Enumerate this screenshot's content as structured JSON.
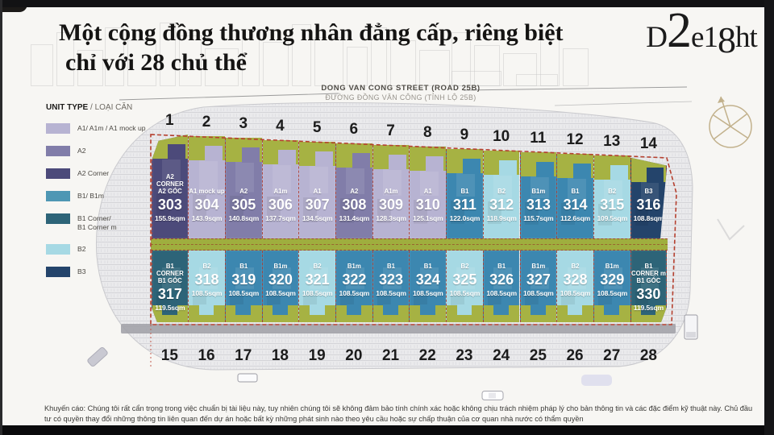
{
  "header": {
    "title_line1": "Một cộng đồng thương nhân đẳng cấp, riêng biệt",
    "title_line2": "chỉ với 28 chủ thể",
    "logo": "D2e18ht"
  },
  "street": {
    "name_en": "DONG VAN CONG STREET (ROAD 25B)",
    "name_vi": "ĐƯỜNG ĐỒNG VĂN CÔNG (TỈNH LỘ 25B)"
  },
  "legend": {
    "title_en": "UNIT TYPE",
    "title_vi": " / LOẠI CĂN",
    "items": [
      {
        "label": [
          "A1/ A1m / A1 mock up"
        ],
        "color": "#b7b3d2"
      },
      {
        "label": [
          "A2"
        ],
        "color": "#817da9"
      },
      {
        "label": [
          "A2 Corner"
        ],
        "color": "#4c4a7a"
      },
      {
        "label": [
          "B1/ B1m"
        ],
        "color": "#4e97b4"
      },
      {
        "label": [
          "B1 Corner/",
          "B1 Corner m"
        ],
        "color": "#2d6478"
      },
      {
        "label": [
          "B2"
        ],
        "color": "#a6d9e4"
      },
      {
        "label": [
          "B3"
        ],
        "color": "#24446b"
      }
    ]
  },
  "colors": {
    "boundary_red": "#b5402f",
    "garden_green": "#a6b243",
    "road_grey": "#eaeaec",
    "compass_tan": "#c2b18c"
  },
  "units": {
    "top_row": [
      {
        "no": "1",
        "unit": "303",
        "type": [
          "A2 CORNER",
          "A2 GÓC"
        ],
        "area": "155.9sqm",
        "color": "#4c4a7a"
      },
      {
        "no": "2",
        "unit": "304",
        "type": [
          "A1 mock up"
        ],
        "area": "143.9sqm",
        "color": "#b7b3d2"
      },
      {
        "no": "3",
        "unit": "305",
        "type": [
          "A2"
        ],
        "area": "140.8sqm",
        "color": "#817da9"
      },
      {
        "no": "4",
        "unit": "306",
        "type": [
          "A1m"
        ],
        "area": "137.7sqm",
        "color": "#b7b3d2"
      },
      {
        "no": "5",
        "unit": "307",
        "type": [
          "A1"
        ],
        "area": "134.5sqm",
        "color": "#b7b3d2"
      },
      {
        "no": "6",
        "unit": "308",
        "type": [
          "A2"
        ],
        "area": "131.4sqm",
        "color": "#817da9"
      },
      {
        "no": "7",
        "unit": "309",
        "type": [
          "A1m"
        ],
        "area": "128.3sqm",
        "color": "#b7b3d2"
      },
      {
        "no": "8",
        "unit": "310",
        "type": [
          "A1"
        ],
        "area": "125.1sqm",
        "color": "#b7b3d2"
      },
      {
        "no": "9",
        "unit": "311",
        "type": [
          "B1"
        ],
        "area": "122.0sqm",
        "color": "#3c87b0"
      },
      {
        "no": "10",
        "unit": "312",
        "type": [
          "B2"
        ],
        "area": "118.9sqm",
        "color": "#a6d9e4"
      },
      {
        "no": "11",
        "unit": "313",
        "type": [
          "B1m"
        ],
        "area": "115.7sqm",
        "color": "#3c87b0"
      },
      {
        "no": "12",
        "unit": "314",
        "type": [
          "B1"
        ],
        "area": "112.6sqm",
        "color": "#3c87b0"
      },
      {
        "no": "13",
        "unit": "315",
        "type": [
          "B2"
        ],
        "area": "109.5sqm",
        "color": "#a6d9e4"
      },
      {
        "no": "14",
        "unit": "316",
        "type": [
          "B3"
        ],
        "area": "108.8sqm",
        "color": "#24446b"
      }
    ],
    "bottom_row": [
      {
        "no": "15",
        "unit": "317",
        "type": [
          "B1 CORNER",
          "B1 GÓC"
        ],
        "area": "119.5sqm",
        "color": "#2d6478"
      },
      {
        "no": "16",
        "unit": "318",
        "type": [
          "B2"
        ],
        "area": "108.5sqm",
        "color": "#a6d9e4"
      },
      {
        "no": "17",
        "unit": "319",
        "type": [
          "B1"
        ],
        "area": "108.5sqm",
        "color": "#3c87b0"
      },
      {
        "no": "18",
        "unit": "320",
        "type": [
          "B1m"
        ],
        "area": "108.5sqm",
        "color": "#3c87b0"
      },
      {
        "no": "19",
        "unit": "321",
        "type": [
          "B2"
        ],
        "area": "108.5sqm",
        "color": "#a6d9e4"
      },
      {
        "no": "20",
        "unit": "322",
        "type": [
          "B1m"
        ],
        "area": "108.5sqm",
        "color": "#3c87b0"
      },
      {
        "no": "21",
        "unit": "323",
        "type": [
          "B1"
        ],
        "area": "108.5sqm",
        "color": "#3c87b0"
      },
      {
        "no": "22",
        "unit": "324",
        "type": [
          "B1"
        ],
        "area": "108.5sqm",
        "color": "#3c87b0"
      },
      {
        "no": "23",
        "unit": "325",
        "type": [
          "B2"
        ],
        "area": "108.5sqm",
        "color": "#a6d9e4"
      },
      {
        "no": "24",
        "unit": "326",
        "type": [
          "B1"
        ],
        "area": "108.5sqm",
        "color": "#3c87b0"
      },
      {
        "no": "25",
        "unit": "327",
        "type": [
          "B1m"
        ],
        "area": "108.5sqm",
        "color": "#3c87b0"
      },
      {
        "no": "26",
        "unit": "328",
        "type": [
          "B2"
        ],
        "area": "108.5sqm",
        "color": "#a6d9e4"
      },
      {
        "no": "27",
        "unit": "329",
        "type": [
          "B1m"
        ],
        "area": "108.5sqm",
        "color": "#3c87b0"
      },
      {
        "no": "28",
        "unit": "330",
        "type": [
          "B1 CORNER m",
          "B1 GÓC"
        ],
        "area": "119.5sqm",
        "color": "#2d6478"
      }
    ]
  },
  "disclaimer": {
    "line1": "Khuyến cáo: Chúng tôi rất cẩn trọng trong việc chuẩn bị tài liệu này, tuy nhiên chúng tôi sẽ không đảm bảo tính chính xác hoặc không chịu trách nhiệm pháp lý cho bản thông tin và các đặc điểm kỹ thuật này. Chủ đầu",
    "line2": "tư có quyền thay đổi những thông tin liên quan đến dự án hoặc bất kỳ những phát sinh nào theo yêu cầu hoặc sự chấp thuận của cơ quan nhà nước có thẩm quyền"
  }
}
